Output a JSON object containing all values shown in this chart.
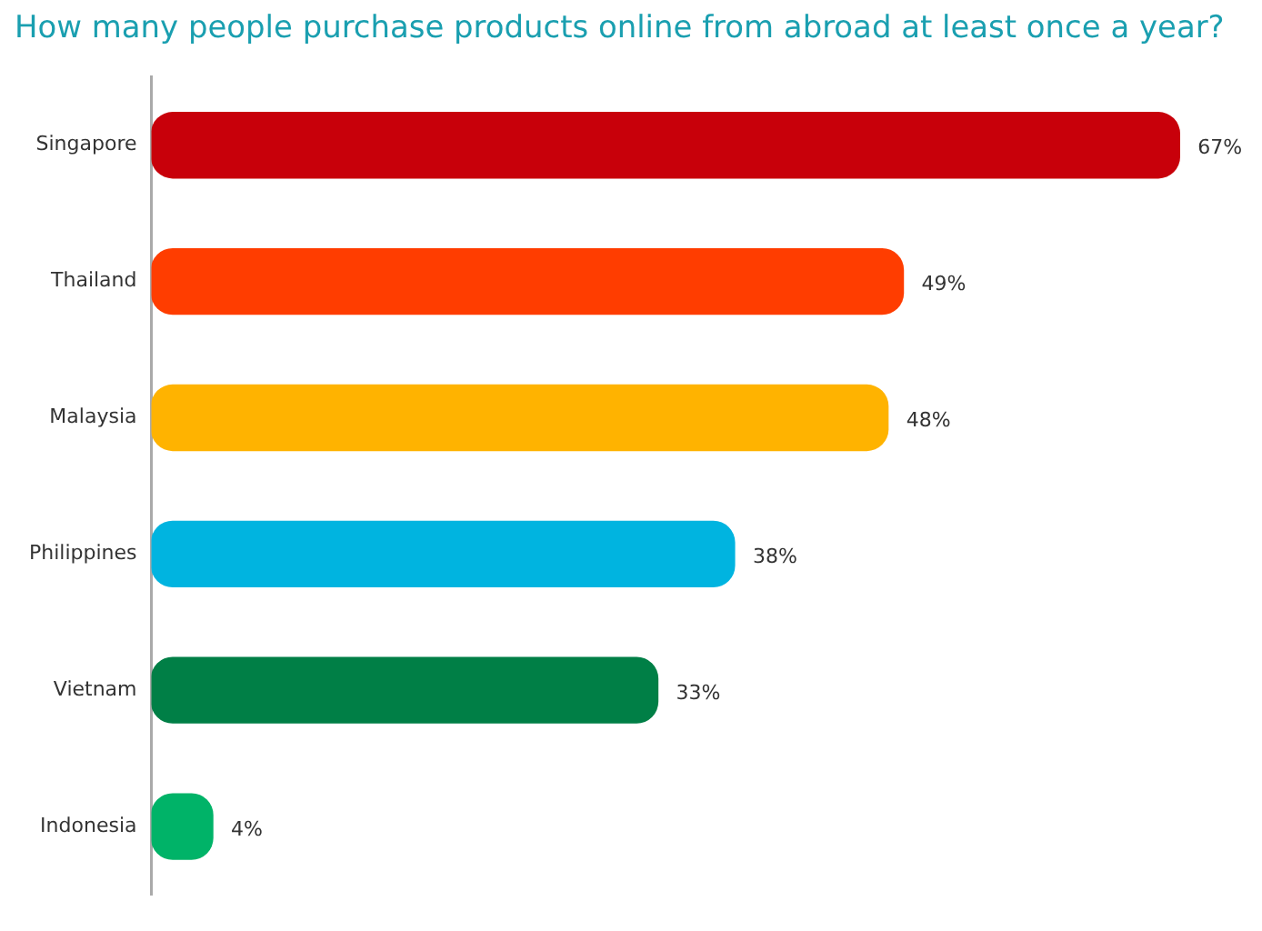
{
  "chart_data": {
    "type": "bar",
    "title": "How many people purchase products online from abroad at least once a year?",
    "orientation": "horizontal",
    "categories": [
      "Singapore",
      "Thailand",
      "Malaysia",
      "Philippines",
      "Vietnam",
      "Indonesia"
    ],
    "values": [
      67,
      49,
      48,
      38,
      33,
      4
    ],
    "colors": [
      "#c8000a",
      "#ff3d00",
      "#ffb300",
      "#00b4e0",
      "#007f46",
      "#00b368"
    ],
    "value_labels": [
      "67%",
      "49%",
      "48%",
      "38%",
      "33%",
      "4%"
    ],
    "grid": false,
    "legend": false
  }
}
